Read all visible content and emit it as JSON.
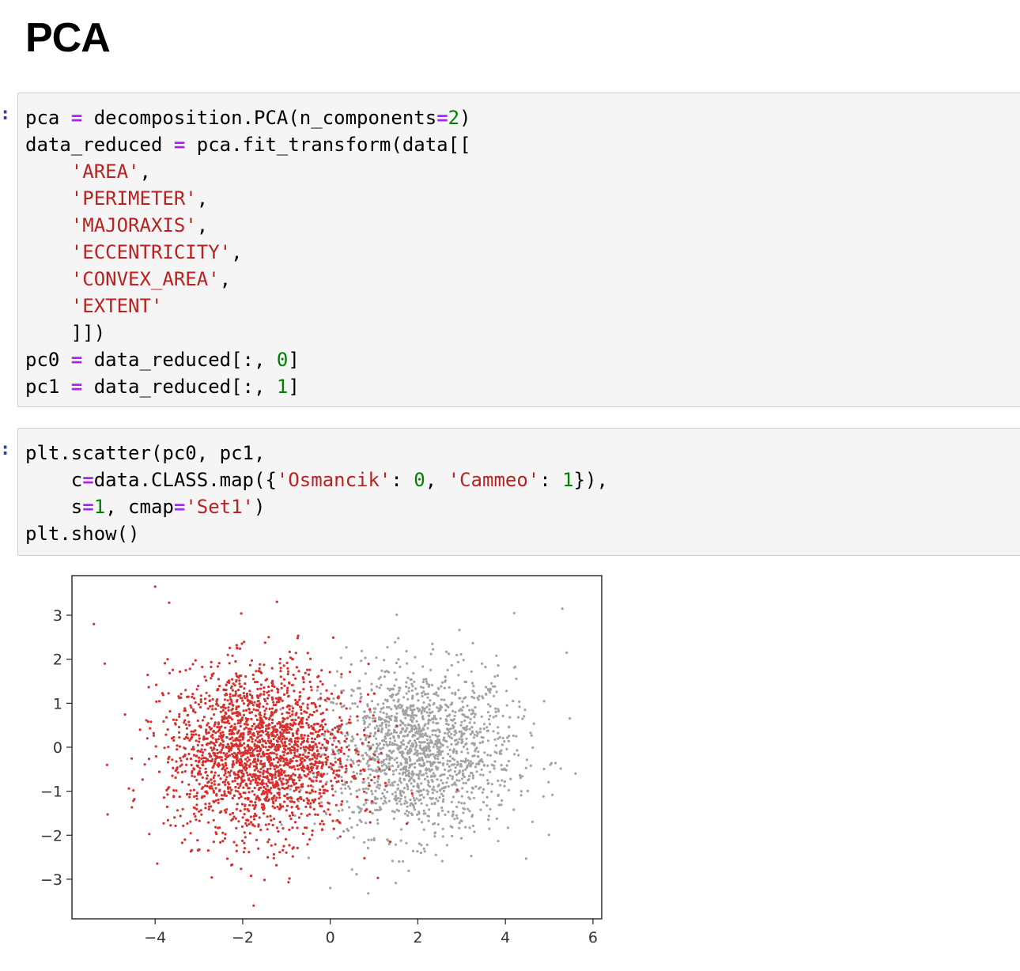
{
  "heading": "PCA",
  "cells": [
    {
      "prompt": ":",
      "lines": [
        [
          {
            "t": "pca "
          },
          {
            "t": "=",
            "c": "op"
          },
          {
            "t": " decomposition.PCA(n_components"
          },
          {
            "t": "=",
            "c": "op"
          },
          {
            "t": "2",
            "c": "num"
          },
          {
            "t": ")"
          }
        ],
        [
          {
            "t": "data_reduced "
          },
          {
            "t": "=",
            "c": "op"
          },
          {
            "t": " pca.fit_transform(data[["
          }
        ],
        [
          {
            "t": "    "
          },
          {
            "t": "'AREA'",
            "c": "str"
          },
          {
            "t": ","
          }
        ],
        [
          {
            "t": "    "
          },
          {
            "t": "'PERIMETER'",
            "c": "str"
          },
          {
            "t": ","
          }
        ],
        [
          {
            "t": "    "
          },
          {
            "t": "'MAJORAXIS'",
            "c": "str"
          },
          {
            "t": ","
          }
        ],
        [
          {
            "t": "    "
          },
          {
            "t": "'ECCENTRICITY'",
            "c": "str"
          },
          {
            "t": ","
          }
        ],
        [
          {
            "t": "    "
          },
          {
            "t": "'CONVEX_AREA'",
            "c": "str"
          },
          {
            "t": ","
          }
        ],
        [
          {
            "t": "    "
          },
          {
            "t": "'EXTENT'",
            "c": "str"
          }
        ],
        [
          {
            "t": "    ]])"
          }
        ],
        [
          {
            "t": "pc0 "
          },
          {
            "t": "=",
            "c": "op"
          },
          {
            "t": " data_reduced[:, "
          },
          {
            "t": "0",
            "c": "num"
          },
          {
            "t": "]"
          }
        ],
        [
          {
            "t": "pc1 "
          },
          {
            "t": "=",
            "c": "op"
          },
          {
            "t": " data_reduced[:, "
          },
          {
            "t": "1",
            "c": "num"
          },
          {
            "t": "]"
          }
        ]
      ]
    },
    {
      "prompt": ":",
      "lines": [
        [
          {
            "t": "plt.scatter(pc0, pc1,"
          }
        ],
        [
          {
            "t": "    c"
          },
          {
            "t": "=",
            "c": "op"
          },
          {
            "t": "data.CLASS.map({"
          },
          {
            "t": "'Osmancik'",
            "c": "str"
          },
          {
            "t": ": "
          },
          {
            "t": "0",
            "c": "num"
          },
          {
            "t": ", "
          },
          {
            "t": "'Cammeo'",
            "c": "str"
          },
          {
            "t": ": "
          },
          {
            "t": "1",
            "c": "num"
          },
          {
            "t": "}),"
          }
        ],
        [
          {
            "t": "    s"
          },
          {
            "t": "=",
            "c": "op"
          },
          {
            "t": "1",
            "c": "num"
          },
          {
            "t": ", cmap"
          },
          {
            "t": "=",
            "c": "op"
          },
          {
            "t": "'Set1'",
            "c": "str"
          },
          {
            "t": ")"
          }
        ],
        [
          {
            "t": "plt.show()"
          }
        ]
      ]
    }
  ],
  "chart_data": {
    "type": "scatter",
    "title": "",
    "xlabel": "",
    "ylabel": "",
    "xlim": [
      -5.9,
      6.2
    ],
    "ylim": [
      -3.9,
      3.9
    ],
    "xticks": [
      -4,
      -2,
      0,
      2,
      4,
      6
    ],
    "yticks": [
      3,
      2,
      1,
      0,
      -1,
      -2,
      -3
    ],
    "xtick_labels": [
      "−4",
      "−2",
      "0",
      "2",
      "4",
      "6"
    ],
    "ytick_labels": [
      "3",
      "2",
      "1",
      "0",
      "−1",
      "−2",
      "−3"
    ],
    "grid": false,
    "series": [
      {
        "class_value": 0,
        "color": "#d6312e",
        "center": [
          -1.6,
          -0.1
        ],
        "spread": [
          1.05,
          0.95
        ],
        "count": 2200
      },
      {
        "class_value": 1,
        "color": "#a3a3a3",
        "center": [
          2.0,
          -0.1
        ],
        "spread": [
          1.1,
          0.95
        ],
        "count": 1600
      }
    ],
    "outliers": [
      {
        "x": -4.0,
        "y": 3.65,
        "color": "#d6312e"
      },
      {
        "x": -5.4,
        "y": 2.8,
        "color": "#d6312e"
      },
      {
        "x": -1.75,
        "y": -3.6,
        "color": "#d6312e"
      },
      {
        "x": 5.3,
        "y": 3.15,
        "color": "#a3a3a3"
      },
      {
        "x": 5.6,
        "y": -0.6,
        "color": "#a3a3a3"
      },
      {
        "x": 5.4,
        "y": 2.15,
        "color": "#a3a3a3"
      },
      {
        "x": 4.2,
        "y": 3.05,
        "color": "#a3a3a3"
      },
      {
        "x": -5.1,
        "y": -0.4,
        "color": "#d6312e"
      },
      {
        "x": 0.0,
        "y": -3.2,
        "color": "#a3a3a3"
      }
    ]
  }
}
